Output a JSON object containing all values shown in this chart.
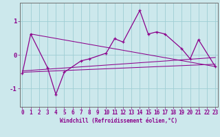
{
  "xlabel": "Windchill (Refroidissement éolien,°C)",
  "bg_color": "#cce8ec",
  "line_color": "#8b008b",
  "grid_color": "#9ecdd4",
  "scatter_x": [
    0,
    1,
    3,
    4,
    5,
    7,
    8,
    10,
    11,
    12,
    14,
    15,
    16,
    17,
    19,
    20,
    21,
    23
  ],
  "scatter_y": [
    -0.55,
    0.62,
    -0.38,
    -1.18,
    -0.52,
    -0.18,
    -0.12,
    0.05,
    0.48,
    0.38,
    1.32,
    0.62,
    0.68,
    0.62,
    0.18,
    -0.12,
    0.45,
    -0.35
  ],
  "trend1_x": [
    0,
    23
  ],
  "trend1_y": [
    -0.52,
    -0.28
  ],
  "trend2_x": [
    0,
    23
  ],
  "trend2_y": [
    -0.48,
    -0.08
  ],
  "trend3_x": [
    1,
    23
  ],
  "trend3_y": [
    0.62,
    -0.35
  ],
  "ylim": [
    -1.55,
    1.55
  ],
  "xlim": [
    -0.3,
    23.3
  ],
  "yticks": [
    -1,
    0,
    1
  ],
  "xticks": [
    0,
    1,
    2,
    3,
    4,
    5,
    6,
    7,
    8,
    9,
    10,
    11,
    12,
    13,
    14,
    15,
    16,
    17,
    18,
    19,
    20,
    21,
    22,
    23
  ],
  "xlabel_fontsize": 5.5,
  "tick_fontsize": 5.5,
  "ytick_fontsize": 6.5,
  "linewidth": 0.9,
  "markersize": 3.5
}
